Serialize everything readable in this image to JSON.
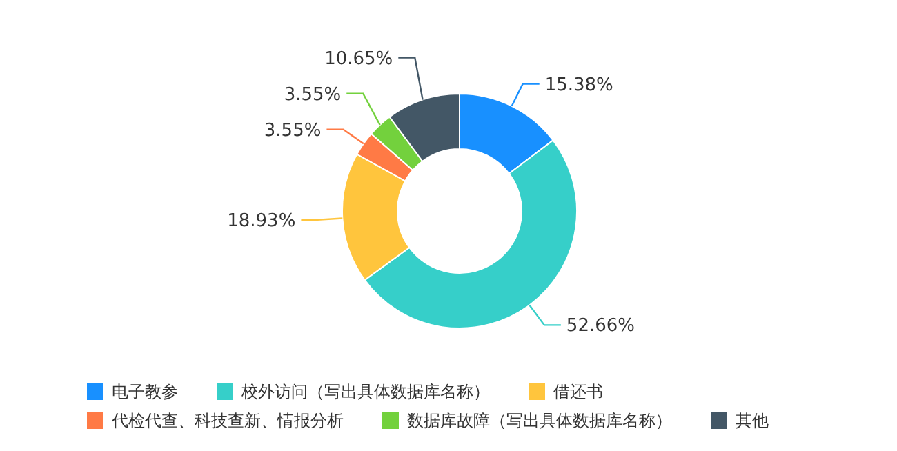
{
  "chart_data": {
    "type": "donut",
    "categories": [
      "电子教参",
      "校外访问（写出具体数据库名称）",
      "借还书",
      "代检代查、科技查新、情报分析",
      "数据库故障（写出具体数据库名称）",
      "其他"
    ],
    "values": [
      15.38,
      52.66,
      18.93,
      3.55,
      3.55,
      10.65
    ],
    "colors": [
      "#1890ff",
      "#36cfc9",
      "#ffc53d",
      "#ff7a45",
      "#73d13d",
      "#435766"
    ],
    "value_labels": [
      "15.38%",
      "52.66%",
      "18.93%",
      "3.55%",
      "3.55%",
      "10.65%"
    ],
    "legend": "bottom"
  }
}
